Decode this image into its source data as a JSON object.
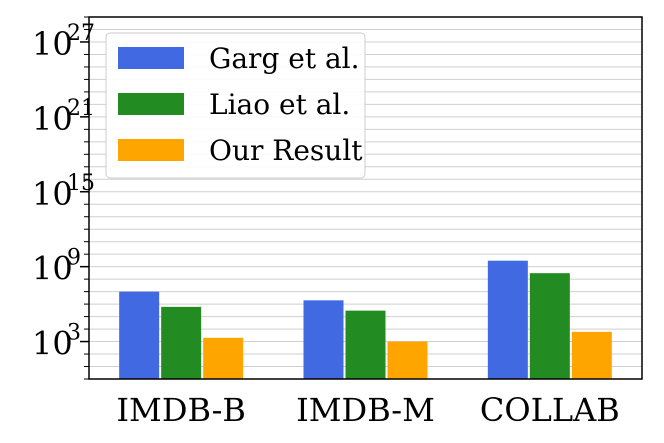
{
  "chart_data": {
    "type": "bar",
    "title": "",
    "xlabel": "",
    "ylabel": "",
    "yscale": "log",
    "ylim": [
      1.0,
      1e+29
    ],
    "y_ticks": [
      {
        "exp": "3",
        "value": 1000.0
      },
      {
        "exp": "9",
        "value": 1000000000.0
      },
      {
        "exp": "15",
        "value": 1000000000000000.0
      },
      {
        "exp": "21",
        "value": 1e+21
      },
      {
        "exp": "27",
        "value": 1e+27
      }
    ],
    "tick_base": "10",
    "grid": true,
    "legend_position": "top-left",
    "categories": [
      "IMDB-B",
      "IMDB-M",
      "COLLAB"
    ],
    "series": [
      {
        "name": "Garg et al.",
        "color": "#4169e1",
        "values": [
          10000000.0,
          2000000.0,
          3000000000.0
        ]
      },
      {
        "name": "Liao et al.",
        "color": "#228b22",
        "values": [
          600000.0,
          300000.0,
          300000000.0
        ]
      },
      {
        "name": "Our Result",
        "color": "#ffa500",
        "values": [
          2000.0,
          1000.0,
          6000.0
        ]
      }
    ]
  }
}
